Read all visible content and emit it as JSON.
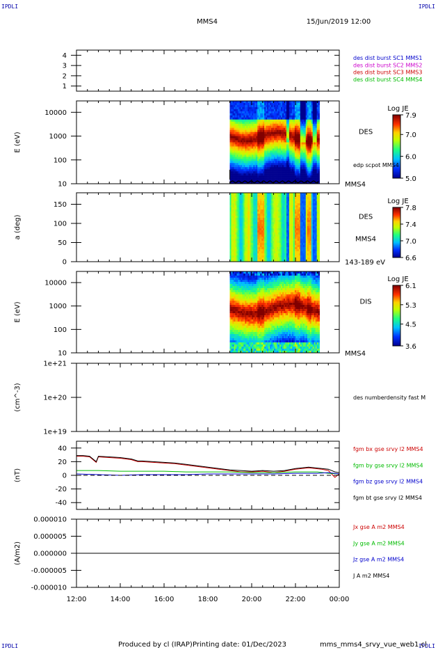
{
  "header": {
    "corner_label": "IPDLI",
    "spacecraft": "MMS4",
    "date_time": "15/Jun/2019 12:00"
  },
  "footer": {
    "produced_by": "Produced by cl (IRAP)",
    "printing_date": "Printing date: 01/Dec/2023",
    "file_name": "mms_mms4_srvy_vue_web1.cl"
  },
  "chart_data": [
    {
      "id": "panel-1",
      "type": "line",
      "ylim": [
        0.5,
        4.5
      ],
      "yticks": [
        "4",
        "3",
        "2",
        "1"
      ],
      "ytick_values": [
        4,
        3,
        2,
        1
      ],
      "legend": [
        {
          "text": "des dist burst SC1 MMS1",
          "color": "#0000cc"
        },
        {
          "text": "des dist burst SC2 MMS2",
          "color": "#cc00cc"
        },
        {
          "text": "des dist burst SC3 MMS3",
          "color": "#cc0000"
        },
        {
          "text": "des dist burst SC4 MMS4",
          "color": "#00bb00"
        }
      ]
    },
    {
      "id": "panel-2",
      "type": "heatmap",
      "ylabel": "E (eV)",
      "yscale": "log",
      "ylim": [
        10,
        30000
      ],
      "yticks": [
        "10000",
        "1000",
        "100",
        "10"
      ],
      "ytick_values": [
        10000,
        1000,
        100,
        10
      ],
      "data_start_hour": 19.0,
      "data_end_hour": 23.1,
      "instrument_label": "DES",
      "overlay_label": "edp scpot MMS4",
      "bottom_label": "MMS4",
      "colorbar": {
        "title": "Log JE",
        "ticks": [
          "7.9",
          "7.0",
          "6.0",
          "5.0"
        ],
        "range": [
          5.0,
          7.9
        ]
      },
      "overlay_line": {
        "name": "edp scpot MMS4",
        "color": "#000000",
        "approx_value_eV": 12
      }
    },
    {
      "id": "panel-3",
      "type": "heatmap",
      "ylabel": "a (deg)",
      "ylim": [
        0,
        180
      ],
      "yticks": [
        "150",
        "100",
        "50",
        "0"
      ],
      "ytick_values": [
        150,
        100,
        50,
        0
      ],
      "data_start_hour": 19.0,
      "data_end_hour": 23.1,
      "instrument_label": "DES",
      "spacecraft_label": "MMS4",
      "bottom_label": "143-189 eV",
      "colorbar": {
        "title": "Log JE",
        "ticks": [
          "7.8",
          "7.4",
          "7.0",
          "6.6"
        ],
        "range": [
          6.6,
          7.8
        ]
      }
    },
    {
      "id": "panel-4",
      "type": "heatmap",
      "ylabel": "E (eV)",
      "yscale": "log",
      "ylim": [
        10,
        30000
      ],
      "yticks": [
        "10000",
        "1000",
        "100",
        "10"
      ],
      "ytick_values": [
        10000,
        1000,
        100,
        10
      ],
      "data_start_hour": 19.0,
      "data_end_hour": 23.1,
      "instrument_label": "DIS",
      "bottom_label": "MMS4",
      "colorbar": {
        "title": "Log JE",
        "ticks": [
          "6.1",
          "5.3",
          "4.5",
          "3.6"
        ],
        "range": [
          3.6,
          6.1
        ]
      }
    },
    {
      "id": "panel-5",
      "type": "line",
      "ylabel": "(cm^-3)",
      "yscale": "log",
      "ylim": [
        1e+19,
        1e+21
      ],
      "yticks": [
        "1e+21",
        "1e+20",
        "1e+19"
      ],
      "ytick_values": [
        1e+21,
        1e+20,
        1e+19
      ],
      "legend": [
        {
          "text": "des numberdensity fast M",
          "color": "#000000"
        }
      ]
    },
    {
      "id": "panel-6",
      "type": "line",
      "ylabel": "(nT)",
      "ylim": [
        -50,
        50
      ],
      "yticks": [
        "40",
        "20",
        "0",
        "-20",
        "-40"
      ],
      "ytick_values": [
        40,
        20,
        0,
        -20,
        -40
      ],
      "legend": [
        {
          "text": "fgm bx gse srvy l2 MMS4",
          "color": "#cc0000"
        },
        {
          "text": "fgm by gse srvy l2 MMS4",
          "color": "#00bb00"
        },
        {
          "text": "fgm bz gse srvy l2 MMS4",
          "color": "#0000cc"
        },
        {
          "text": "fgm bt gse srvy l2 MMS4",
          "color": "#000000"
        }
      ],
      "series": [
        {
          "name": "fgm bx gse srvy l2 MMS4",
          "color": "#cc0000",
          "x": [
            12.0,
            12.3,
            12.6,
            12.9,
            13.0,
            13.5,
            14.0,
            14.5,
            14.8,
            15.0,
            15.5,
            16.0,
            16.5,
            17.0,
            17.5,
            18.0,
            18.5,
            19.0,
            19.5,
            20.0,
            20.5,
            21.0,
            21.5,
            22.0,
            22.3,
            22.6,
            22.9,
            23.2,
            23.5,
            23.8,
            24.0
          ],
          "y": [
            28,
            28,
            27,
            19,
            27,
            26,
            25,
            23,
            20,
            20,
            19,
            18,
            17,
            15,
            13,
            11,
            9,
            7,
            5,
            5,
            6,
            4,
            6,
            9,
            10,
            11,
            10,
            9,
            7,
            -3,
            2
          ]
        },
        {
          "name": "fgm by gse srvy l2 MMS4",
          "color": "#00bb00",
          "x": [
            12.0,
            13.0,
            14.0,
            15.0,
            16.0,
            17.0,
            18.0,
            19.0,
            20.0,
            21.0,
            22.0,
            23.0,
            23.5,
            24.0
          ],
          "y": [
            7,
            7,
            6,
            6,
            6,
            5,
            5,
            5,
            4,
            4,
            5,
            5,
            3,
            2
          ]
        },
        {
          "name": "fgm bz gse srvy l2 MMS4",
          "color": "#0000cc",
          "x": [
            12.0,
            13.0,
            14.0,
            15.0,
            16.0,
            17.0,
            18.0,
            19.0,
            20.0,
            21.0,
            22.0,
            23.0,
            23.5,
            24.0
          ],
          "y": [
            2,
            1,
            0,
            1,
            1,
            1,
            2,
            2,
            2,
            2,
            3,
            3,
            4,
            2
          ]
        },
        {
          "name": "fgm bt gse srvy l2 MMS4",
          "color": "#000000",
          "x": [
            12.0,
            12.3,
            12.6,
            12.9,
            13.0,
            13.5,
            14.0,
            14.5,
            14.8,
            15.0,
            15.5,
            16.0,
            16.5,
            17.0,
            17.5,
            18.0,
            18.5,
            19.0,
            19.5,
            20.0,
            20.5,
            21.0,
            21.5,
            22.0,
            22.3,
            22.6,
            22.9,
            23.2,
            23.5,
            23.8,
            24.0
          ],
          "y": [
            29,
            29,
            28,
            20,
            28,
            27,
            26,
            24,
            21,
            21,
            20,
            19,
            18,
            16,
            14,
            12,
            10,
            8,
            7,
            6,
            7,
            6,
            7,
            10,
            11,
            12,
            11,
            10,
            9,
            5,
            4
          ]
        }
      ]
    },
    {
      "id": "panel-7",
      "type": "line",
      "ylabel": "(A/m2)",
      "ylim": [
        -1e-05,
        1e-05
      ],
      "yticks": [
        "0.000010",
        "0.000005",
        "0.000000",
        "-0.000005",
        "-0.000010"
      ],
      "ytick_values": [
        1e-05,
        5e-06,
        0.0,
        -5e-06,
        -1e-05
      ],
      "legend": [
        {
          "text": "Jx gse A m2 MMS4",
          "color": "#cc0000"
        },
        {
          "text": "Jy gse A m2 MMS4",
          "color": "#00bb00"
        },
        {
          "text": "Jz gse A m2 MMS4",
          "color": "#0000cc"
        },
        {
          "text": "J A m2 MMS4",
          "color": "#000000"
        }
      ],
      "series": [
        {
          "name": "J A m2 MMS4",
          "color": "#000000",
          "x": [
            12.0,
            24.0
          ],
          "y": [
            0.0,
            0.0
          ]
        }
      ]
    }
  ],
  "x_axis": {
    "range_hours": [
      12,
      24
    ],
    "tick_labels": [
      "12:00",
      "14:00",
      "16:00",
      "18:00",
      "20:00",
      "22:00",
      "00:00"
    ],
    "tick_hours": [
      12,
      14,
      16,
      18,
      20,
      22,
      24
    ]
  }
}
